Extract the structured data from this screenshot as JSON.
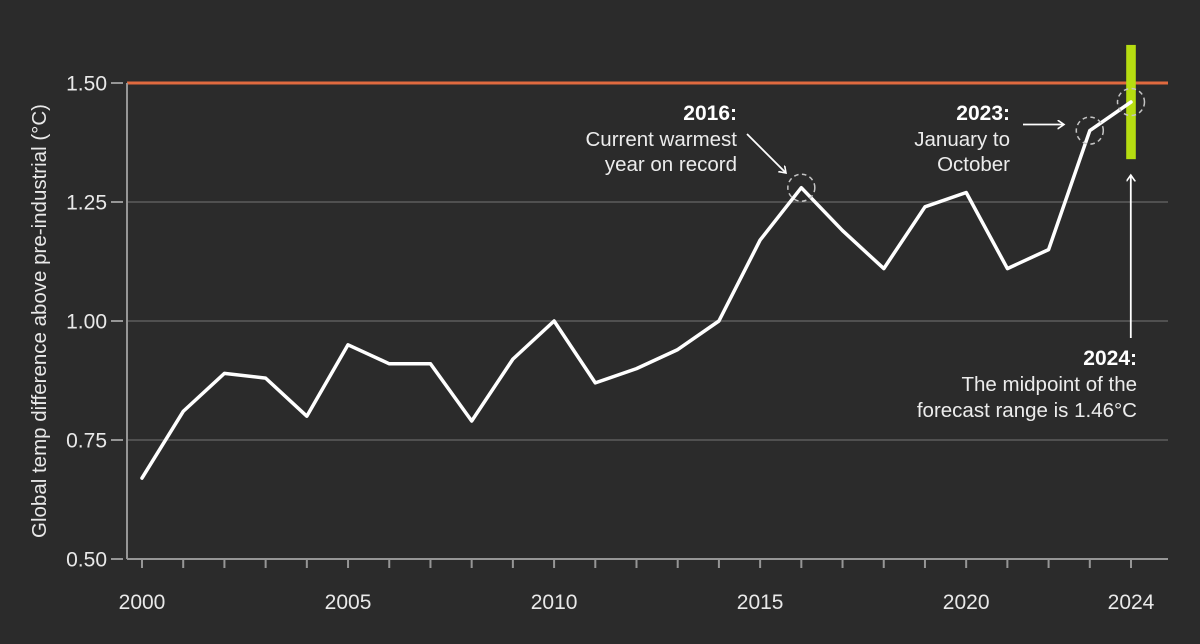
{
  "colors": {
    "background": "#2b2b2b",
    "temp_line": "#ffffff",
    "grid": "#5c5c5c",
    "axis": "#969696",
    "tick_text": "#e9e9e9",
    "annotation_text": "#ececec",
    "annotation_year_text": "#ffffff",
    "threshold_line": "#e06a3f",
    "forecast_bar": "#b6dd11",
    "highlight_circle": "#c4c4c4",
    "arrow": "#ffffff"
  },
  "chart_data": {
    "type": "line",
    "title": "",
    "xlabel": "",
    "ylabel": "Global temp difference above pre-industrial (°C)",
    "x": [
      2000,
      2001,
      2002,
      2003,
      2004,
      2005,
      2006,
      2007,
      2008,
      2009,
      2010,
      2011,
      2012,
      2013,
      2014,
      2015,
      2016,
      2017,
      2018,
      2019,
      2020,
      2021,
      2022,
      2023,
      2024
    ],
    "values": [
      0.67,
      0.81,
      0.89,
      0.88,
      0.8,
      0.95,
      0.91,
      0.91,
      0.79,
      0.92,
      1.0,
      0.87,
      0.9,
      0.94,
      1.0,
      1.17,
      1.28,
      1.19,
      1.11,
      1.24,
      1.27,
      1.11,
      1.15,
      1.4,
      1.46
    ],
    "xlim": [
      2000,
      2024
    ],
    "ylim": [
      0.5,
      1.5
    ],
    "y_tick_values": [
      1.5,
      1.25,
      1.0,
      0.75,
      0.5
    ],
    "y_tick_labels": [
      "1.50",
      "1.25",
      "1.00",
      "0.75",
      "0.50"
    ],
    "gridline_values": [
      1.25,
      1.0,
      0.75
    ],
    "x_tick_label_years": [
      2000,
      2005,
      2010,
      2015,
      2020,
      2024
    ],
    "x_tick_labels": [
      "2000",
      "2005",
      "2010",
      "2015",
      "2020",
      "2024"
    ],
    "grid": "horizontal gridlines only, dark theme, no legend",
    "threshold_value": 1.5,
    "forecast_2024": {
      "low": 1.34,
      "midpoint": 1.46,
      "high": 1.58
    },
    "highlighted_points": [
      {
        "year": 2016,
        "value": 1.28
      },
      {
        "year": 2023,
        "value": 1.4
      },
      {
        "year": 2024,
        "value": 1.46
      }
    ]
  },
  "annotations": {
    "y2016": {
      "year": "2016:",
      "line1": "Current warmest",
      "line2": "year on record"
    },
    "y2023": {
      "year": "2023:",
      "line1": "January to",
      "line2": "October"
    },
    "y2024": {
      "year": "2024:",
      "line1": "The midpoint of the",
      "line2": "forecast range is 1.46°C"
    }
  }
}
